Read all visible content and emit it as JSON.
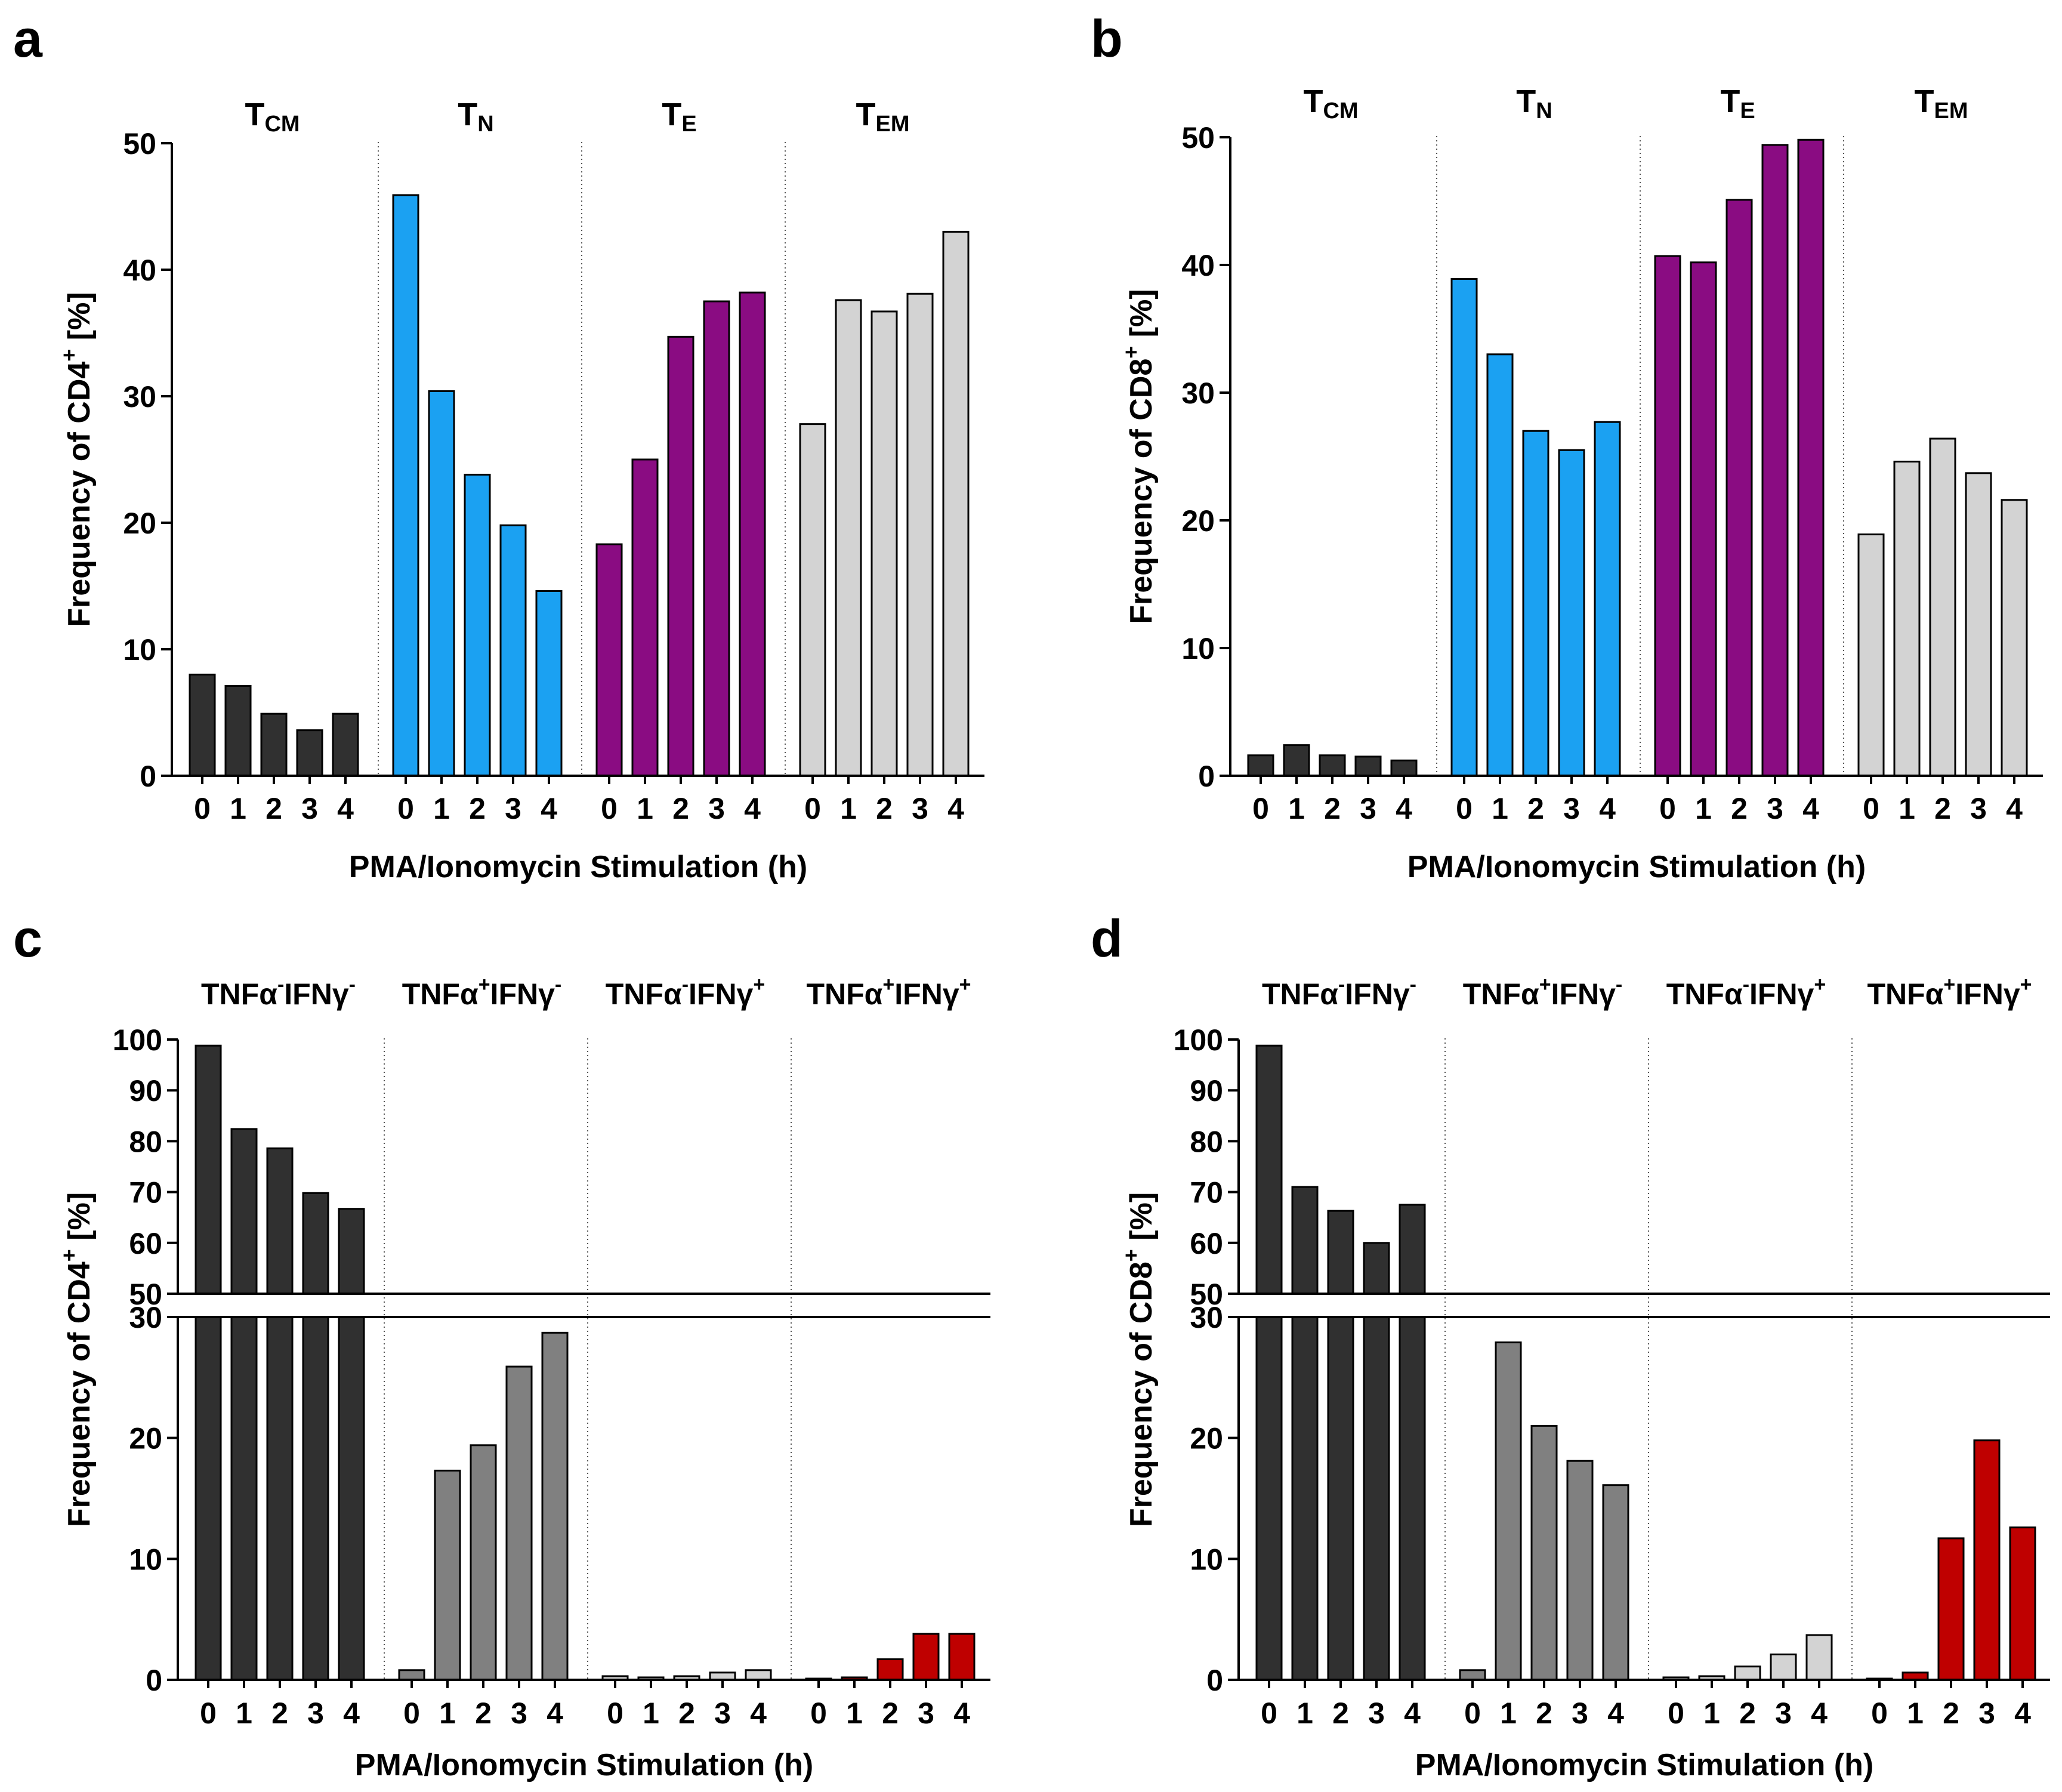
{
  "figure": {
    "x_categories": [
      "0",
      "1",
      "2",
      "3",
      "4"
    ],
    "colors": {
      "TCM": "#303030",
      "TN": "#1BA1F2",
      "TE": "#8A0C82",
      "TEM": "#D3D3D3",
      "neg_neg": "#303030",
      "pos_neg": "#808080",
      "neg_pos": "#D3D3D3",
      "pos_pos": "#BF0000"
    }
  },
  "chart_data": [
    {
      "id": "a",
      "panel_label": "a",
      "type": "bar",
      "title": "",
      "xlabel": "PMA/Ionomycin Stimulation (h)",
      "ylabel": {
        "main": "Frequency of CD4",
        "sup": "+",
        "unit": " [%]"
      },
      "ylim": [
        0,
        50
      ],
      "yticks": [
        0,
        10,
        20,
        30,
        40,
        50
      ],
      "categories": [
        "0",
        "1",
        "2",
        "3",
        "4"
      ],
      "groups": [
        {
          "name": "T",
          "sub": "CM",
          "color_key": "TCM",
          "values": [
            8.0,
            7.1,
            4.9,
            3.6,
            4.9
          ]
        },
        {
          "name": "T",
          "sub": "N",
          "color_key": "TN",
          "values": [
            45.9,
            30.4,
            23.8,
            19.8,
            14.6
          ]
        },
        {
          "name": "T",
          "sub": "E",
          "color_key": "TE",
          "values": [
            18.3,
            25.0,
            34.7,
            37.5,
            38.2
          ]
        },
        {
          "name": "T",
          "sub": "EM",
          "color_key": "TEM",
          "values": [
            27.8,
            37.6,
            36.7,
            38.1,
            43.0
          ]
        }
      ]
    },
    {
      "id": "b",
      "panel_label": "b",
      "type": "bar",
      "title": "",
      "xlabel": "PMA/Ionomycin Stimulation (h)",
      "ylabel": {
        "main": "Frequency of CD8",
        "sup": "+",
        "unit": " [%]"
      },
      "ylim": [
        0,
        50
      ],
      "yticks": [
        0,
        10,
        20,
        30,
        40,
        50
      ],
      "categories": [
        "0",
        "1",
        "2",
        "3",
        "4"
      ],
      "groups": [
        {
          "name": "T",
          "sub": "CM",
          "color_key": "TCM",
          "values": [
            1.6,
            2.4,
            1.6,
            1.5,
            1.2
          ]
        },
        {
          "name": "T",
          "sub": "N",
          "color_key": "TN",
          "values": [
            38.9,
            33.0,
            27.0,
            25.5,
            27.7
          ]
        },
        {
          "name": "T",
          "sub": "E",
          "color_key": "TE",
          "values": [
            40.7,
            40.2,
            45.1,
            49.4,
            49.8
          ]
        },
        {
          "name": "T",
          "sub": "EM",
          "color_key": "TEM",
          "values": [
            18.9,
            24.6,
            26.4,
            23.7,
            21.6
          ]
        }
      ]
    },
    {
      "id": "c",
      "panel_label": "c",
      "type": "bar",
      "title": "",
      "xlabel": "PMA/Ionomycin Stimulation (h)",
      "ylabel": {
        "main": "Frequency of CD4",
        "sup": "+",
        "unit": " [%]"
      },
      "axis_break": {
        "lower": [
          0,
          30
        ],
        "upper": [
          50,
          100
        ]
      },
      "yticks_lower": [
        0,
        10,
        20,
        30
      ],
      "yticks_upper": [
        50,
        60,
        70,
        80,
        90,
        100
      ],
      "categories": [
        "0",
        "1",
        "2",
        "3",
        "4"
      ],
      "groups": [
        {
          "label": [
            [
              "TNFα",
              "-"
            ],
            [
              "IFNγ",
              "-"
            ]
          ],
          "color_key": "neg_neg",
          "values": [
            98.8,
            82.4,
            78.6,
            69.8,
            66.7
          ]
        },
        {
          "label": [
            [
              "TNFα",
              "+"
            ],
            [
              "IFNγ",
              "-"
            ]
          ],
          "color_key": "pos_neg",
          "values": [
            0.8,
            17.3,
            19.4,
            25.9,
            28.7
          ]
        },
        {
          "label": [
            [
              "TNFα",
              "-"
            ],
            [
              "IFNγ",
              "+"
            ]
          ],
          "color_key": "neg_pos",
          "values": [
            0.3,
            0.2,
            0.3,
            0.6,
            0.8
          ]
        },
        {
          "label": [
            [
              "TNFα",
              "+"
            ],
            [
              "IFNγ",
              "+"
            ]
          ],
          "color_key": "pos_pos",
          "values": [
            0.1,
            0.2,
            1.7,
            3.8,
            3.8
          ]
        }
      ]
    },
    {
      "id": "d",
      "panel_label": "d",
      "type": "bar",
      "title": "",
      "xlabel": "PMA/Ionomycin Stimulation (h)",
      "ylabel": {
        "main": "Frequency of CD8",
        "sup": "+",
        "unit": " [%]"
      },
      "axis_break": {
        "lower": [
          0,
          30
        ],
        "upper": [
          50,
          100
        ]
      },
      "yticks_lower": [
        0,
        10,
        20,
        30
      ],
      "yticks_upper": [
        50,
        60,
        70,
        80,
        90,
        100
      ],
      "categories": [
        "0",
        "1",
        "2",
        "3",
        "4"
      ],
      "groups": [
        {
          "label": [
            [
              "TNFα",
              "-"
            ],
            [
              "IFNγ",
              "-"
            ]
          ],
          "color_key": "neg_neg",
          "values": [
            98.8,
            71.0,
            66.3,
            60.0,
            67.5
          ]
        },
        {
          "label": [
            [
              "TNFα",
              "+"
            ],
            [
              "IFNγ",
              "-"
            ]
          ],
          "color_key": "pos_neg",
          "values": [
            0.8,
            27.9,
            21.0,
            18.1,
            16.1
          ]
        },
        {
          "label": [
            [
              "TNFα",
              "-"
            ],
            [
              "IFNγ",
              "+"
            ]
          ],
          "color_key": "neg_pos",
          "values": [
            0.2,
            0.3,
            1.1,
            2.1,
            3.7
          ]
        },
        {
          "label": [
            [
              "TNFα",
              "+"
            ],
            [
              "IFNγ",
              "+"
            ]
          ],
          "color_key": "pos_pos",
          "values": [
            0.1,
            0.6,
            11.7,
            19.8,
            12.6
          ]
        }
      ]
    }
  ]
}
